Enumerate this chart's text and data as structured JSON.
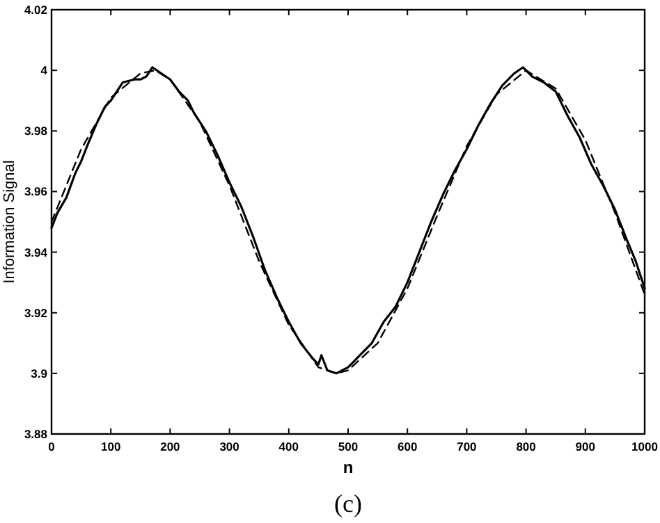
{
  "chart_data": {
    "type": "line",
    "xlabel": "n",
    "ylabel": "Information Signal",
    "annotations": [
      "(c)"
    ],
    "xlim": [
      0,
      1000
    ],
    "xticks": [
      0,
      100,
      200,
      300,
      400,
      500,
      600,
      700,
      800,
      900,
      1000
    ],
    "ylim": [
      3.88,
      4.02
    ],
    "yticks": [
      3.88,
      3.9,
      3.92,
      3.94,
      3.96,
      3.98,
      4,
      4.02
    ],
    "grid": false,
    "series": [
      {
        "color": "#000000",
        "line_style": "solid",
        "x": [
          0,
          10,
          25,
          40,
          50,
          60,
          75,
          90,
          100,
          120,
          140,
          150,
          160,
          170,
          185,
          200,
          215,
          230,
          240,
          260,
          280,
          300,
          320,
          340,
          360,
          380,
          400,
          420,
          440,
          450,
          455,
          465,
          480,
          500,
          520,
          540,
          560,
          580,
          600,
          620,
          640,
          660,
          680,
          700,
          720,
          740,
          760,
          780,
          795,
          810,
          830,
          850,
          870,
          890,
          910,
          930,
          950,
          970,
          985,
          1000
        ],
        "values": [
          3.948,
          3.953,
          3.958,
          3.966,
          3.97,
          3.975,
          3.982,
          3.988,
          3.99,
          3.996,
          3.997,
          3.997,
          3.998,
          4.001,
          3.999,
          3.997,
          3.993,
          3.99,
          3.986,
          3.98,
          3.972,
          3.963,
          3.955,
          3.945,
          3.934,
          3.925,
          3.917,
          3.91,
          3.905,
          3.903,
          3.906,
          3.901,
          3.9,
          3.902,
          3.906,
          3.91,
          3.917,
          3.922,
          3.93,
          3.94,
          3.95,
          3.959,
          3.967,
          3.974,
          3.982,
          3.989,
          3.995,
          3.999,
          4.001,
          3.998,
          3.996,
          3.993,
          3.985,
          3.978,
          3.969,
          3.962,
          3.954,
          3.944,
          3.937,
          3.928
        ]
      },
      {
        "color": "#000000",
        "line_style": "dashed",
        "x": [
          0,
          50,
          100,
          150,
          175,
          200,
          250,
          300,
          350,
          400,
          450,
          480,
          500,
          550,
          600,
          650,
          700,
          750,
          800,
          850,
          900,
          950,
          1000
        ],
        "values": [
          3.95,
          3.974,
          3.991,
          3.999,
          4.0,
          3.997,
          3.983,
          3.962,
          3.937,
          3.916,
          3.902,
          3.9,
          3.901,
          3.91,
          3.928,
          3.952,
          3.975,
          3.992,
          4.0,
          3.994,
          3.977,
          3.953,
          3.926
        ]
      }
    ]
  }
}
